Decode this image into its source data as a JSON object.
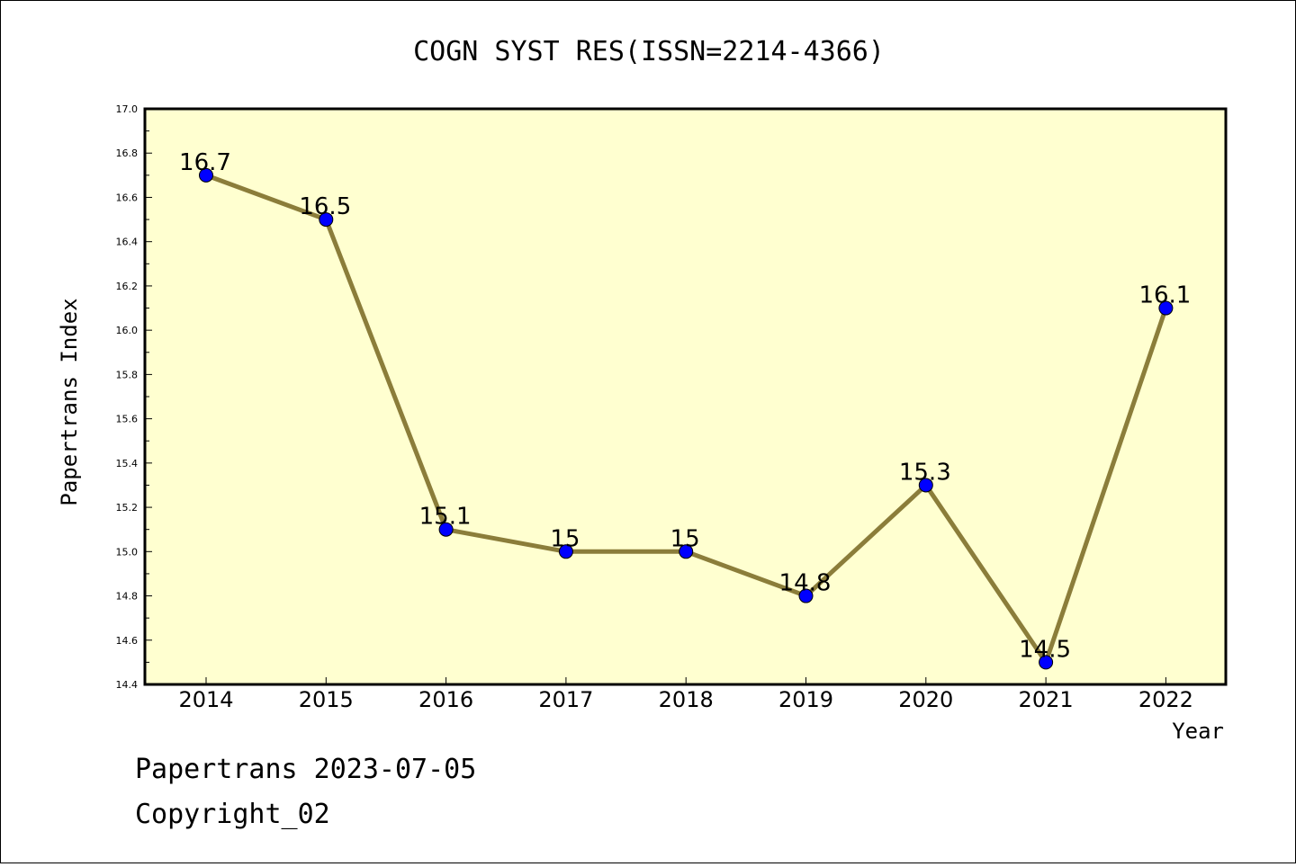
{
  "chart_data": {
    "type": "line",
    "title": "COGN SYST RES(ISSN=2214-4366)",
    "xlabel": "Year",
    "ylabel": "Papertrans Index",
    "categories": [
      "2014",
      "2015",
      "2016",
      "2017",
      "2018",
      "2019",
      "2020",
      "2021",
      "2022"
    ],
    "series": [
      {
        "values": [
          16.7,
          16.5,
          15.1,
          15.0,
          15.0,
          14.8,
          15.3,
          14.5,
          16.1
        ],
        "labels": [
          "16.7",
          "16.5",
          "15.1",
          "15",
          "15",
          "14.8",
          "15.3",
          "14.5",
          "16.1"
        ]
      }
    ],
    "ylim": [
      14.4,
      17.0
    ],
    "yticks": [
      "14.4",
      "14.6",
      "14.8",
      "15.0",
      "15.2",
      "15.4",
      "15.6",
      "15.8",
      "16.0",
      "16.2",
      "16.4",
      "16.6",
      "16.8",
      "17.0"
    ],
    "grid": false,
    "colors": {
      "plot_background": "#ffffd0",
      "line": "#8b7d3a",
      "marker": "#0000ff"
    }
  },
  "footer": {
    "line1": "Papertrans 2023-07-05",
    "line2": "Copyright_02"
  }
}
